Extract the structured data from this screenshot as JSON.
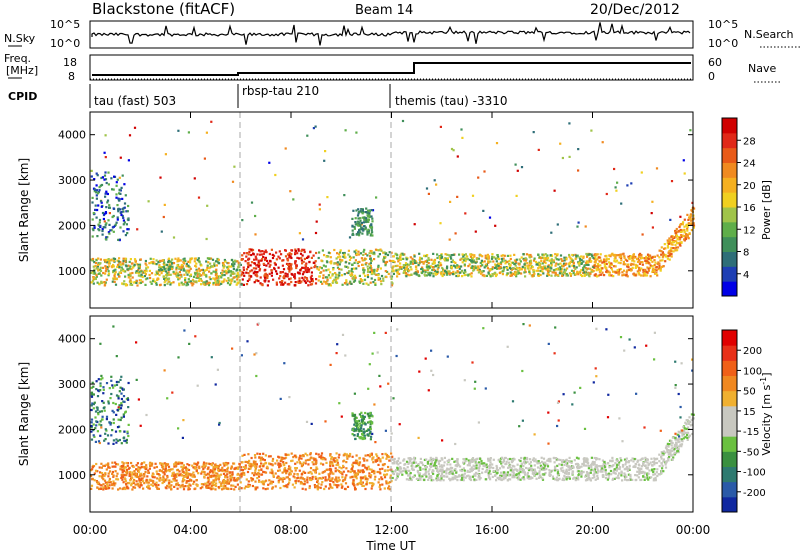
{
  "header": {
    "title": "Blackstone (fitACF)",
    "beam": "Beam 14",
    "date": "20/Dec/2012"
  },
  "noise_panel": {
    "left_label": "N.Sky",
    "left_ticks": [
      "10^5",
      "10^0"
    ],
    "right_label": "N.Search",
    "right_ticks": [
      "10^5",
      "10^0"
    ]
  },
  "freq_panel": {
    "left_label_1": "Freq.",
    "left_label_2": "[MHz]",
    "left_ticks": [
      "18",
      "8"
    ],
    "right_label": "Nave",
    "right_ticks": [
      "60",
      "0"
    ]
  },
  "cpid_panel": {
    "label": "CPID",
    "segments": [
      {
        "name": "tau (fast) 503",
        "start_h": 0,
        "end_h": 6
      },
      {
        "name": "rbsp-tau 210",
        "start_h": 6,
        "end_h": 12
      },
      {
        "name": "themis (tau) -3310",
        "start_h": 12,
        "end_h": 24
      }
    ]
  },
  "chart_data": [
    {
      "type": "heatmap",
      "name": "Power",
      "ylabel": "Slant Range [km]",
      "xlabel": "Time UT",
      "xlim_hours": [
        0,
        24
      ],
      "ylim_km": [
        180,
        4500
      ],
      "yticks": [
        1000,
        2000,
        3000,
        4000
      ],
      "colorbar": {
        "label": "Power [dB]",
        "ticks": [
          "28",
          "24",
          "20",
          "16",
          "12",
          "8",
          "4"
        ],
        "colors": [
          "#0000e6",
          "#1e3fb4",
          "#2e6e78",
          "#3f8f5a",
          "#5fae4a",
          "#a0c44a",
          "#f0d020",
          "#f5b020",
          "#f08a20",
          "#e85a18",
          "#e02818",
          "#d00000"
        ]
      }
    },
    {
      "type": "heatmap",
      "name": "Velocity",
      "ylabel": "Slant Range [km]",
      "xlabel": "Time UT",
      "xlim_hours": [
        0,
        24
      ],
      "ylim_km": [
        180,
        4500
      ],
      "yticks": [
        1000,
        2000,
        3000,
        4000
      ],
      "xticks": [
        "00:00",
        "04:00",
        "08:00",
        "12:00",
        "16:00",
        "20:00",
        "00:00"
      ],
      "colorbar": {
        "label": "Velocity [m s^-1]",
        "ticks": [
          "200",
          "100",
          "50",
          "15",
          "-15",
          "-50",
          "-100",
          "-200"
        ],
        "colors": [
          "#1028a0",
          "#2a5aa8",
          "#2e7a70",
          "#3a9040",
          "#6ac040",
          "#c8c8c0",
          "#c8c8c0",
          "#f0b030",
          "#f08820",
          "#f06018",
          "#e83018",
          "#e00000"
        ]
      }
    }
  ],
  "xaxis": {
    "label": "Time UT",
    "ticks": [
      "00:00",
      "04:00",
      "08:00",
      "12:00",
      "16:00",
      "20:00",
      "00:00"
    ]
  }
}
